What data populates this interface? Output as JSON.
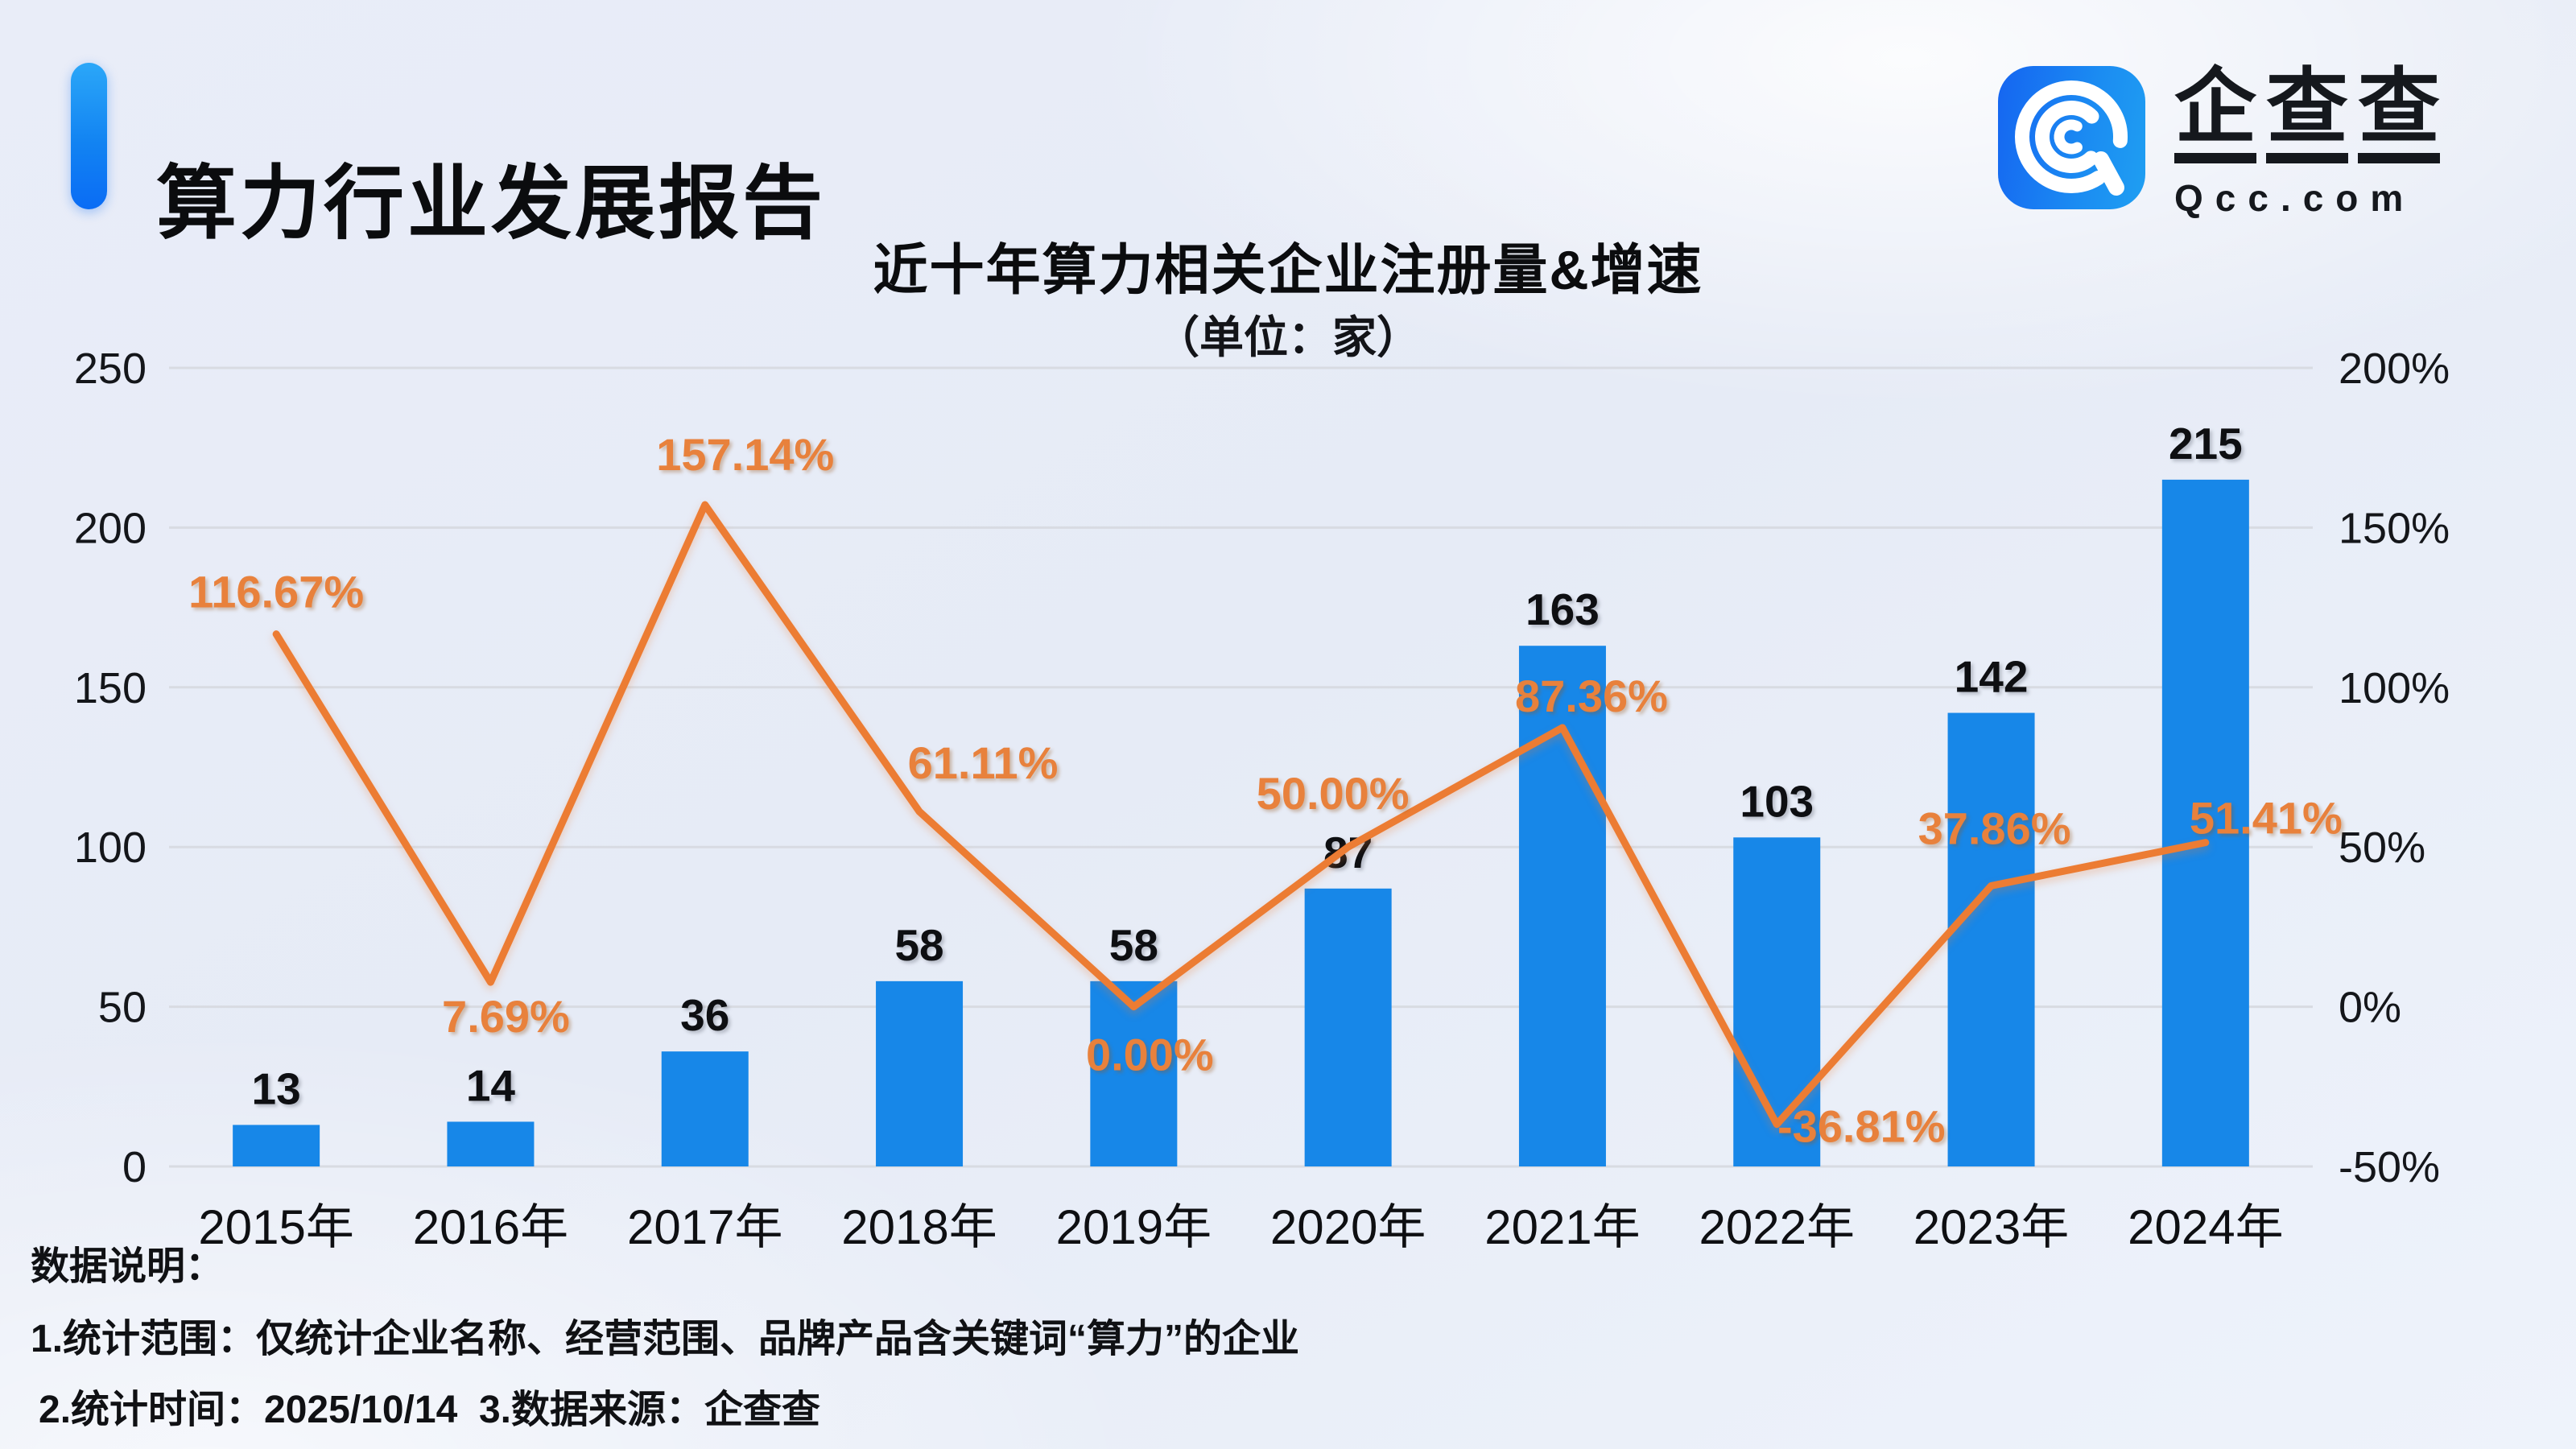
{
  "header": {
    "report_title": "算力行业发展报告",
    "logo": {
      "brand_chars": [
        "企",
        "查",
        "查"
      ],
      "brand_en": "Qcc.com",
      "icon": "qcc-magnifier-icon"
    }
  },
  "chart_data": {
    "type": "bar",
    "combo": "bar+line",
    "title": "近十年算力相关企业注册量&增速",
    "subtitle": "（单位：家）",
    "categories": [
      "2015年",
      "2016年",
      "2017年",
      "2018年",
      "2019年",
      "2020年",
      "2021年",
      "2022年",
      "2023年",
      "2024年"
    ],
    "series": [
      {
        "name": "注册量（家）",
        "type": "bar",
        "axis": "left",
        "color": "#1787e8",
        "values": [
          13,
          14,
          36,
          58,
          58,
          87,
          163,
          103,
          142,
          215
        ]
      },
      {
        "name": "增速",
        "type": "line",
        "axis": "right",
        "color": "#ec7c33",
        "values": [
          116.67,
          7.69,
          157.14,
          61.11,
          0.0,
          50.0,
          87.36,
          -36.81,
          37.86,
          51.41
        ],
        "labels": [
          "116.67%",
          "7.69%",
          "157.14%",
          "61.11%",
          "0.00%",
          "50.00%",
          "87.36%",
          "-36.81%",
          "37.86%",
          "51.41%"
        ]
      }
    ],
    "left_axis": {
      "min": 0,
      "max": 250,
      "ticks": [
        "0",
        "50",
        "100",
        "150",
        "200",
        "250"
      ]
    },
    "right_axis": {
      "min": -50,
      "max": 200,
      "ticks": [
        "-50%",
        "0%",
        "50%",
        "100%",
        "150%",
        "200%"
      ]
    },
    "grid": true,
    "legend_position": "none",
    "label_color": "#e8813c",
    "value_label_color": "#0e0f12",
    "grid_color": "#d8dbe2"
  },
  "footnotes": {
    "heading": "数据说明：",
    "note1": "1.统计范围：仅统计企业名称、经营范围、品牌产品含关键词“算力”的企业",
    "note2": "2.统计时间：2025/10/14  3.数据来源：企查查"
  }
}
